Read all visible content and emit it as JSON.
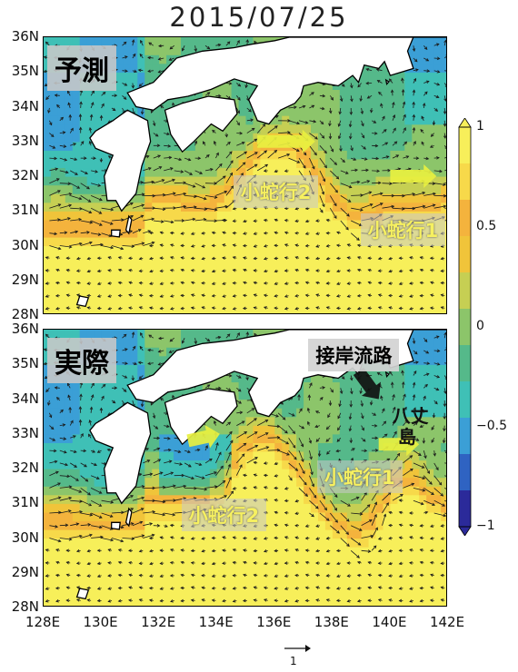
{
  "title": "2015/07/25",
  "panels": [
    {
      "id": "top",
      "label": "予測",
      "annotations": [
        {
          "text": "小蛇行2",
          "x": 134.6,
          "y": 32.0
        },
        {
          "text": "小蛇行1",
          "x": 139.0,
          "y": 30.9
        }
      ],
      "arrows": [
        {
          "x1": 135.4,
          "y1": 33.0,
          "x2": 137.4,
          "y2": 33.0,
          "color": "#e8f040"
        },
        {
          "x1": 140.0,
          "y1": 32.0,
          "x2": 141.6,
          "y2": 32.0,
          "color": "#e8f040"
        }
      ]
    },
    {
      "id": "bottom",
      "label": "実際",
      "annotations": [
        {
          "text": "小蛇行2",
          "x": 132.8,
          "y": 31.1
        },
        {
          "text": "小蛇行1",
          "x": 137.5,
          "y": 32.2
        },
        {
          "text": "接岸流路",
          "x": 137.2,
          "y": 35.7
        },
        {
          "text": "八丈",
          "x": 140.1,
          "y": 33.9
        },
        {
          "text": "島",
          "x": 140.3,
          "y": 33.3
        }
      ],
      "arrows": [
        {
          "x1": 133.0,
          "y1": 32.8,
          "x2": 134.1,
          "y2": 33.0,
          "color": "#e8f040"
        },
        {
          "x1": 139.6,
          "y1": 32.7,
          "x2": 141.0,
          "y2": 32.7,
          "color": "#e8f040"
        },
        {
          "x1": 138.9,
          "y1": 34.8,
          "x2": 139.6,
          "y2": 34.0,
          "color": "#111111"
        }
      ]
    }
  ],
  "axes": {
    "y_ticks": [
      "36N",
      "35N",
      "34N",
      "33N",
      "32N",
      "31N",
      "30N",
      "29N",
      "28N"
    ],
    "x_ticks": [
      "128E",
      "130E",
      "132E",
      "134E",
      "136E",
      "138E",
      "140E",
      "142E"
    ],
    "lon_range": [
      128,
      142
    ],
    "lat_range": [
      28,
      36
    ]
  },
  "colorbar": {
    "ticks": [
      "1",
      "0.5",
      "0",
      "−0.5",
      "−1"
    ],
    "range": [
      -1,
      1
    ],
    "colors": [
      "#2b2a9a",
      "#2f63c2",
      "#3b9fd6",
      "#3fc0b6",
      "#55b98a",
      "#8cc56a",
      "#c6cf53",
      "#f0c43a",
      "#f4b33d",
      "#f7d94a",
      "#f7ef5a"
    ]
  },
  "vector_scale": "1"
}
